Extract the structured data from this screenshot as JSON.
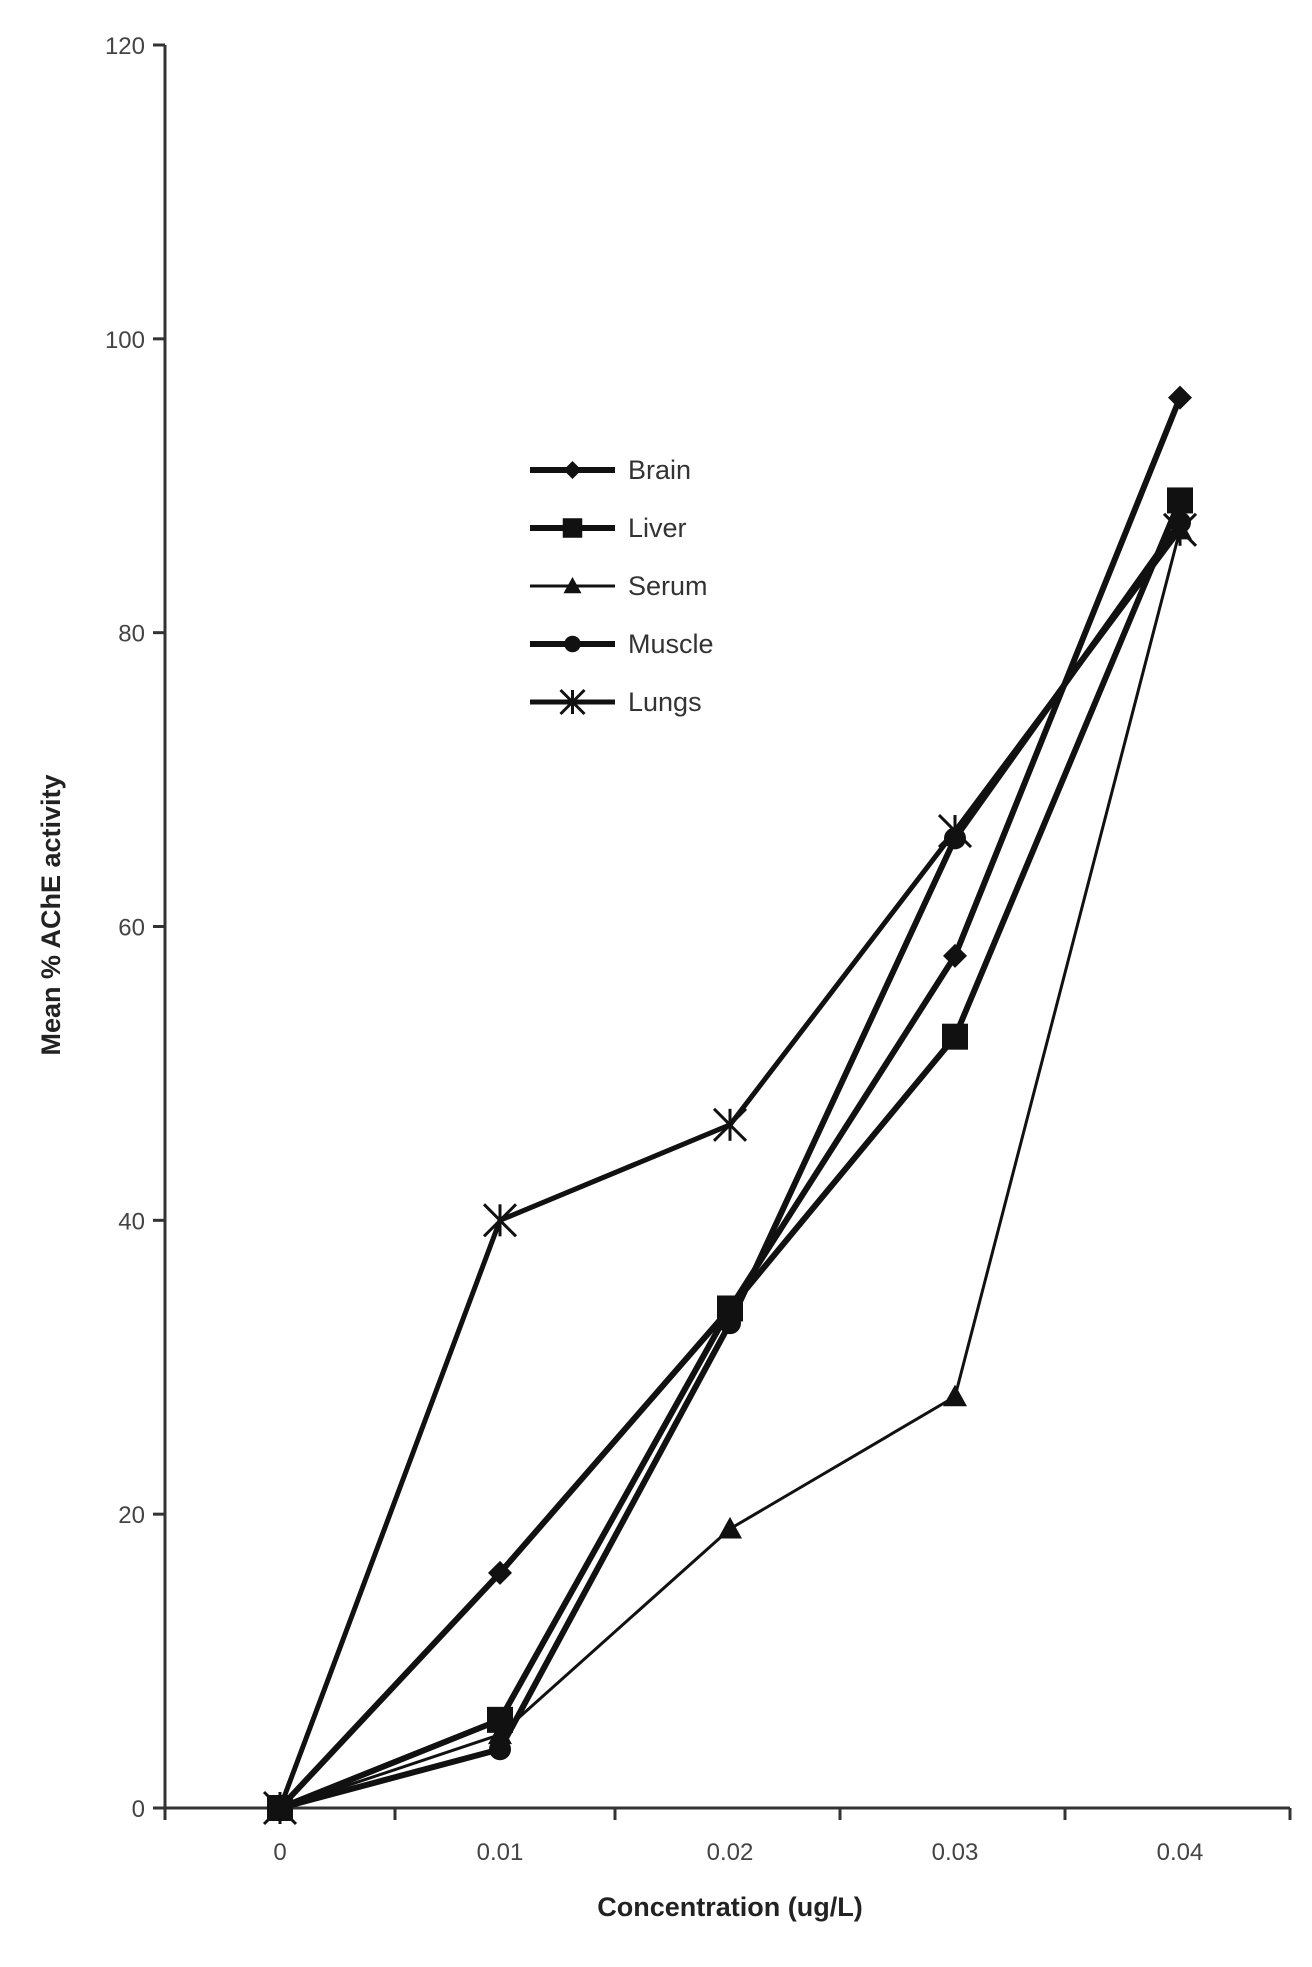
{
  "chart_data": {
    "type": "line",
    "title": "",
    "xlabel": "Concentration (ug/L)",
    "ylabel": "Mean % AChE activity",
    "categories": [
      "0",
      "0.01",
      "0.02",
      "0.03",
      "0.04"
    ],
    "ylim": [
      0,
      120
    ],
    "yticks": [
      0,
      20,
      40,
      60,
      80,
      100,
      120
    ],
    "grid": false,
    "legend_position": "upper-center",
    "series": [
      {
        "name": "Brain",
        "marker": "diamond",
        "values": [
          0,
          16,
          34,
          58,
          96
        ]
      },
      {
        "name": "Liver",
        "marker": "square",
        "values": [
          0,
          6,
          34,
          52.5,
          89
        ]
      },
      {
        "name": "Serum",
        "marker": "triangle",
        "values": [
          0,
          5,
          19,
          28,
          87
        ]
      },
      {
        "name": "Muscle",
        "marker": "circle",
        "values": [
          0,
          4,
          33,
          66,
          87.5
        ]
      },
      {
        "name": "Lungs",
        "marker": "star",
        "values": [
          0,
          40,
          46.5,
          66.5,
          87
        ]
      }
    ],
    "colors": {
      "line": "#111111",
      "axis": "#333333",
      "text": "#444444"
    }
  }
}
